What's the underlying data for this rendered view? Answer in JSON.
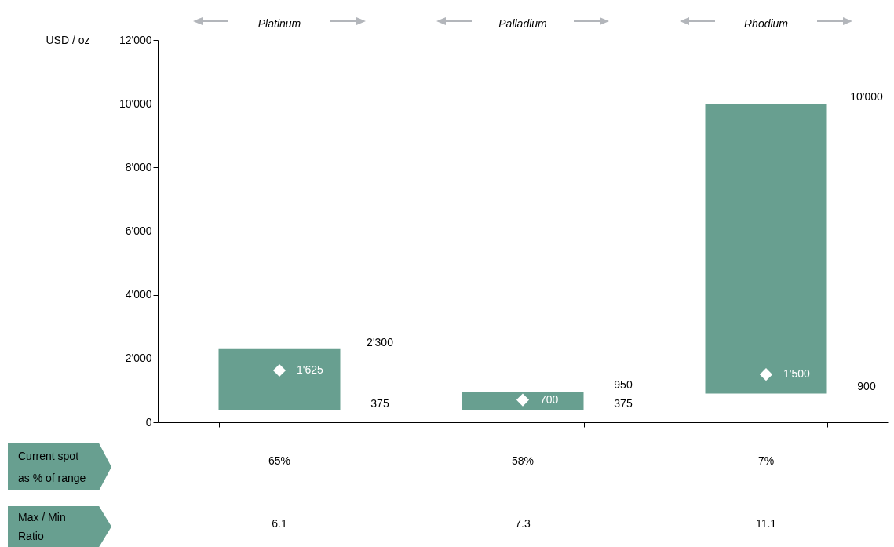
{
  "chart_data": {
    "type": "bar",
    "ylabel": "USD / oz",
    "categories": [
      "Platinum",
      "Palladium",
      "Rhodium"
    ],
    "series": [
      {
        "color": "#689f90",
        "values": [
          1925,
          575,
          9100
        ],
        "base": [
          375,
          375,
          900
        ]
      },
      {
        "type": "scatter",
        "color": "#ffffff",
        "marker": "diamond",
        "x": [
          "Platinum",
          "Palladium",
          "Rhodium"
        ],
        "values": [
          1625,
          700,
          1500
        ],
        "value_labels": [
          "1'625",
          "700",
          "1'500"
        ]
      }
    ],
    "ylim": [
      0,
      12000
    ],
    "yticks": [
      0,
      {
        "value": 2000,
        "label": "2'000"
      },
      {
        "value": 4000,
        "label": "4'000"
      },
      {
        "value": 6000,
        "label": "6'000"
      },
      {
        "value": 8000,
        "label": "8'000"
      },
      {
        "value": 10000,
        "label": "10'000"
      },
      {
        "value": 12000,
        "label": "12'000"
      }
    ],
    "grid": false,
    "annotations": [
      "2'300",
      "375",
      "950",
      "375",
      "10'000",
      "900",
      "Current spot as % of range",
      "65%",
      "58%",
      "7%",
      "Max / Min Ratio",
      "6.1",
      "7.3",
      "11.1"
    ]
  }
}
